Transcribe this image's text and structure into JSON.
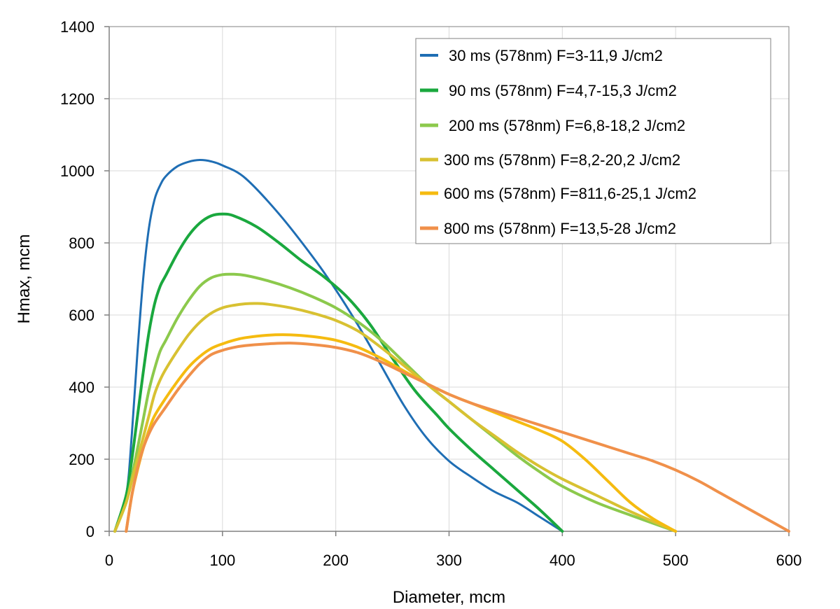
{
  "chart_data": {
    "type": "line",
    "title": "",
    "xlabel": "Diameter, mcm",
    "ylabel": "Hmax, mcm",
    "xlim": [
      0,
      600
    ],
    "ylim": [
      0,
      1400
    ],
    "xticks": [
      0,
      100,
      200,
      300,
      400,
      500,
      600
    ],
    "yticks": [
      0,
      200,
      400,
      600,
      800,
      1000,
      1200,
      1400
    ],
    "xtick_labels": [
      "0",
      "100",
      "200",
      "300",
      "400",
      "500",
      "600"
    ],
    "ytick_labels": [
      "0",
      "200",
      "400",
      "600",
      "800",
      "1000",
      "1200",
      "1400"
    ],
    "grid": true,
    "legend_position": "top-right",
    "series": [
      {
        "name": "30 ms (578nm) F=3-11,9 J/cm2",
        "color": "#1f6eb4",
        "x": [
          5,
          15,
          20,
          25,
          30,
          35,
          40,
          45,
          50,
          60,
          70,
          80,
          90,
          100,
          120,
          150,
          180,
          200,
          220,
          240,
          260,
          280,
          300,
          320,
          340,
          360,
          380,
          400
        ],
        "y": [
          0,
          100,
          270,
          500,
          700,
          840,
          920,
          960,
          985,
          1012,
          1025,
          1030,
          1026,
          1015,
          980,
          880,
          760,
          670,
          570,
          460,
          350,
          260,
          195,
          150,
          110,
          80,
          40,
          0
        ]
      },
      {
        "name": "90 ms (578nm) F=4,7-15,3 J/cm2",
        "color": "#1aa83e",
        "x": [
          5,
          15,
          20,
          25,
          30,
          35,
          40,
          45,
          50,
          60,
          70,
          80,
          90,
          100,
          110,
          130,
          150,
          170,
          190,
          210,
          230,
          250,
          270,
          290,
          300,
          320,
          340,
          360,
          380,
          400
        ],
        "y": [
          0,
          100,
          200,
          320,
          440,
          550,
          630,
          680,
          710,
          770,
          820,
          855,
          875,
          880,
          875,
          845,
          800,
          750,
          705,
          650,
          575,
          480,
          390,
          320,
          285,
          225,
          170,
          115,
          60,
          0
        ]
      },
      {
        "name": "200 ms (578nm) F=6,8-18,2 J/cm2",
        "color": "#8cc94c",
        "x": [
          5,
          15,
          20,
          25,
          30,
          35,
          40,
          45,
          50,
          60,
          70,
          80,
          90,
          100,
          110,
          120,
          140,
          160,
          180,
          200,
          220,
          240,
          260,
          280,
          300,
          320,
          340,
          360,
          380,
          400,
          430,
          460,
          500
        ],
        "y": [
          0,
          80,
          150,
          230,
          310,
          390,
          450,
          500,
          530,
          590,
          640,
          680,
          703,
          712,
          713,
          710,
          695,
          675,
          650,
          620,
          580,
          530,
          470,
          410,
          360,
          310,
          260,
          210,
          165,
          125,
          80,
          45,
          0
        ]
      },
      {
        "name": "300 ms (578nm) F=8,2-20,2 J/cm2",
        "color": "#d8c132",
        "x": [
          5,
          15,
          20,
          25,
          30,
          35,
          40,
          45,
          50,
          60,
          70,
          80,
          90,
          100,
          110,
          120,
          130,
          140,
          160,
          180,
          200,
          220,
          240,
          260,
          280,
          300,
          320,
          340,
          360,
          380,
          400,
          430,
          460,
          500
        ],
        "y": [
          0,
          80,
          140,
          200,
          260,
          320,
          380,
          420,
          450,
          500,
          545,
          580,
          605,
          620,
          627,
          631,
          632,
          630,
          620,
          605,
          585,
          555,
          510,
          460,
          410,
          360,
          310,
          265,
          220,
          180,
          145,
          100,
          55,
          0
        ]
      },
      {
        "name": "600 ms (578nm) F=811,6-25,1 J/cm2",
        "color": "#f5bb10",
        "x": [
          15,
          20,
          25,
          30,
          35,
          40,
          50,
          60,
          70,
          80,
          90,
          100,
          110,
          120,
          140,
          160,
          180,
          200,
          220,
          240,
          260,
          280,
          300,
          320,
          340,
          360,
          380,
          400,
          420,
          440,
          460,
          480,
          500
        ],
        "y": [
          0,
          100,
          170,
          230,
          280,
          320,
          370,
          415,
          455,
          485,
          507,
          520,
          530,
          537,
          544,
          545,
          540,
          530,
          510,
          480,
          445,
          410,
          380,
          355,
          330,
          305,
          280,
          250,
          200,
          140,
          80,
          35,
          0
        ]
      },
      {
        "name": "800 ms (578nm) F=13,5-28 J/cm2",
        "color": "#f0904a",
        "x": [
          15,
          20,
          25,
          30,
          35,
          40,
          50,
          60,
          70,
          80,
          90,
          100,
          110,
          120,
          140,
          160,
          180,
          200,
          220,
          240,
          260,
          280,
          300,
          320,
          340,
          360,
          380,
          400,
          420,
          440,
          460,
          480,
          500,
          520,
          540,
          560,
          580,
          600
        ],
        "y": [
          0,
          100,
          175,
          230,
          270,
          300,
          345,
          390,
          430,
          465,
          490,
          502,
          510,
          515,
          520,
          522,
          518,
          510,
          495,
          470,
          440,
          410,
          380,
          355,
          335,
          315,
          295,
          275,
          255,
          235,
          215,
          195,
          170,
          140,
          105,
          70,
          35,
          0
        ]
      }
    ]
  }
}
